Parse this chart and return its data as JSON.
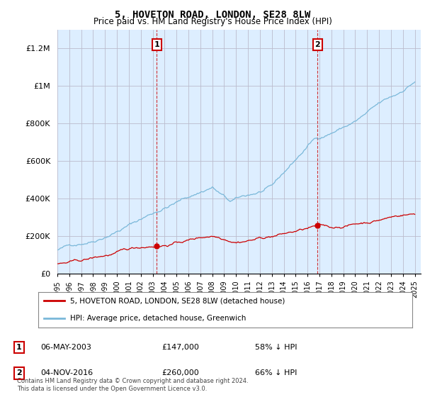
{
  "title": "5, HOVETON ROAD, LONDON, SE28 8LW",
  "subtitle": "Price paid vs. HM Land Registry's House Price Index (HPI)",
  "ylim": [
    0,
    1300000
  ],
  "yticks": [
    0,
    200000,
    400000,
    600000,
    800000,
    1000000,
    1200000
  ],
  "ytick_labels": [
    "£0",
    "£200K",
    "£400K",
    "£600K",
    "£800K",
    "£1M",
    "£1.2M"
  ],
  "hpi_color": "#7ab8d9",
  "price_color": "#cc0000",
  "transaction1": {
    "label": "1",
    "date": "06-MAY-2003",
    "price": "£147,000",
    "pct": "58% ↓ HPI"
  },
  "transaction2": {
    "label": "2",
    "date": "04-NOV-2016",
    "price": "£260,000",
    "pct": "66% ↓ HPI"
  },
  "legend_line1": "5, HOVETON ROAD, LONDON, SE28 8LW (detached house)",
  "legend_line2": "HPI: Average price, detached house, Greenwich",
  "footer": "Contains HM Land Registry data © Crown copyright and database right 2024.\nThis data is licensed under the Open Government Licence v3.0.",
  "background_color": "#ffffff",
  "plot_bg_color": "#ddeeff"
}
